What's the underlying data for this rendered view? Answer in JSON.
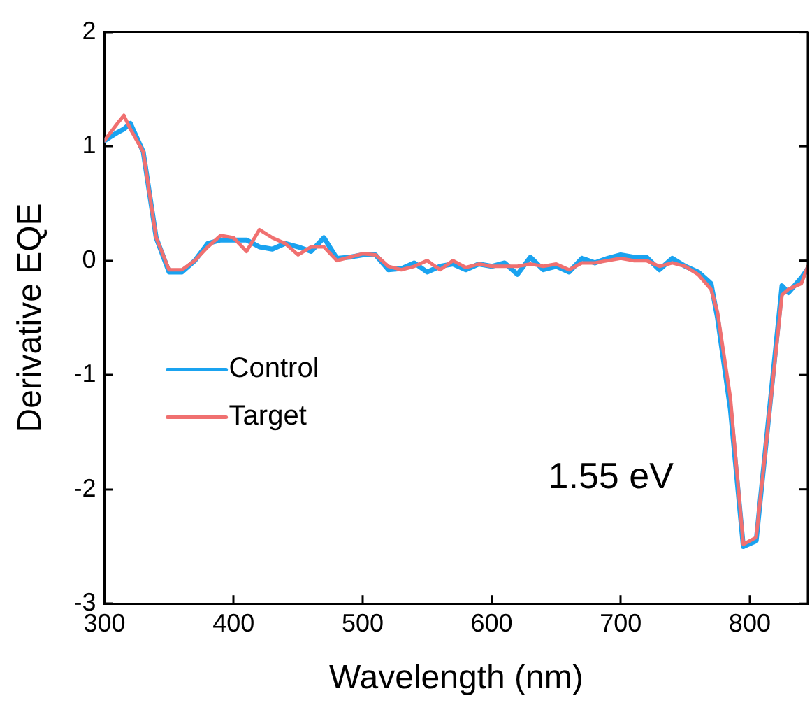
{
  "chart_data": {
    "type": "line",
    "xlabel": "Wavelength (nm)",
    "ylabel": "Derivative EQE",
    "x": [
      300,
      310,
      315,
      320,
      330,
      340,
      350,
      360,
      370,
      380,
      390,
      400,
      410,
      420,
      430,
      440,
      450,
      460,
      470,
      480,
      490,
      500,
      510,
      520,
      530,
      540,
      550,
      560,
      570,
      580,
      590,
      600,
      610,
      620,
      630,
      640,
      650,
      660,
      670,
      680,
      690,
      700,
      710,
      720,
      730,
      740,
      750,
      760,
      770,
      775,
      785,
      795,
      805,
      825,
      830,
      840,
      845
    ],
    "series": [
      {
        "name": "Control",
        "color": "#1aa3f0",
        "values": [
          1.05,
          1.12,
          1.15,
          1.2,
          0.95,
          0.2,
          -0.1,
          -0.1,
          0.0,
          0.15,
          0.18,
          0.18,
          0.18,
          0.12,
          0.1,
          0.15,
          0.12,
          0.08,
          0.2,
          0.02,
          0.03,
          0.05,
          0.05,
          -0.08,
          -0.07,
          -0.02,
          -0.1,
          -0.05,
          -0.03,
          -0.08,
          -0.03,
          -0.05,
          -0.02,
          -0.12,
          0.03,
          -0.08,
          -0.05,
          -0.1,
          0.02,
          -0.02,
          0.02,
          0.05,
          0.03,
          0.03,
          -0.08,
          0.02,
          -0.05,
          -0.1,
          -0.2,
          -0.5,
          -1.3,
          -2.5,
          -2.45,
          -0.22,
          -0.28,
          -0.15,
          -0.07
        ]
      },
      {
        "name": "Target",
        "color": "#f07070",
        "values": [
          1.05,
          1.2,
          1.27,
          1.15,
          0.95,
          0.2,
          -0.08,
          -0.08,
          0.0,
          0.12,
          0.22,
          0.2,
          0.08,
          0.27,
          0.2,
          0.15,
          0.05,
          0.12,
          0.12,
          0.0,
          0.03,
          0.06,
          0.05,
          -0.05,
          -0.08,
          -0.05,
          0.0,
          -0.08,
          0.0,
          -0.06,
          -0.03,
          -0.05,
          -0.05,
          -0.05,
          -0.03,
          -0.05,
          -0.03,
          -0.08,
          -0.02,
          -0.02,
          0.0,
          0.02,
          0.0,
          0.0,
          -0.05,
          -0.02,
          -0.05,
          -0.12,
          -0.25,
          -0.45,
          -1.2,
          -2.48,
          -2.42,
          -0.3,
          -0.25,
          -0.2,
          -0.05
        ]
      }
    ],
    "xlim": [
      300,
      845
    ],
    "xticks": [
      300,
      400,
      500,
      600,
      700,
      800
    ],
    "ylim": [
      -3,
      2
    ],
    "yticks": [
      -3,
      -2,
      -1,
      0,
      1,
      2
    ],
    "grid": false,
    "legend": "left",
    "marker": "none",
    "line_style": "solid",
    "annotations": [
      "1.55 eV"
    ]
  }
}
